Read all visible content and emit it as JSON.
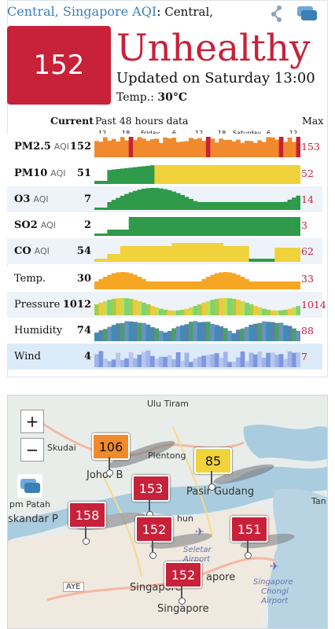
{
  "header": {
    "city": "Central, Singapore AQI",
    "colon": ":",
    "station": " Central,"
  },
  "aqi": {
    "value": "152",
    "status": "Unhealthy",
    "updated": "Updated on Saturday 13:00",
    "temp_label": "Temp.: ",
    "temp_value": "30°C"
  },
  "table": {
    "col_current": "Current",
    "col_history": "Past 48 hours data",
    "col_max": "Max",
    "axis_labels": {
      "h12a": "12",
      "h18a": "18",
      "friday": "Friday",
      "h6a": "6",
      "h12b": "12",
      "h18b": "18",
      "saturday": "Saturday",
      "h6b": "6",
      "h12c": "12"
    },
    "rows": [
      {
        "label": "PM2.5",
        "sub": "AQI",
        "current": "152",
        "max": "153"
      },
      {
        "label": "PM10",
        "sub": "AQI",
        "current": "51",
        "max": "52"
      },
      {
        "label": "O3",
        "sub": "AQI",
        "current": "7",
        "max": "14"
      },
      {
        "label": "SO2",
        "sub": "AQI",
        "current": "2",
        "max": "3"
      },
      {
        "label": "CO",
        "sub": "AQI",
        "current": "54",
        "max": "62"
      },
      {
        "label": "Temp.",
        "sub": "",
        "current": "30",
        "max": "33"
      },
      {
        "label": "Pressure",
        "sub": "",
        "current": "1012",
        "max": "1014"
      },
      {
        "label": "Humidity",
        "sub": "",
        "current": "74",
        "max": "88"
      },
      {
        "label": "Wind",
        "sub": "",
        "current": "4",
        "max": "7"
      }
    ]
  },
  "colors": {
    "accent": "#3b7fb8",
    "unhealthy": "#c8213a",
    "moderate": "#f0d23a",
    "unhealthy_sensitive": "#f08a2c",
    "good": "#2e9a4a"
  },
  "map": {
    "zoom_in": "+",
    "zoom_out": "−",
    "places": {
      "ulu_tiram": "Ulu Tiram",
      "skudai": "Skudai",
      "plentong": "Plentong",
      "johor_b": "Johor B",
      "pasir_gudang": "Pasir Gudang",
      "pm_patah": "pm Patah",
      "iskandar": "skandar P",
      "seletar": "Seletar",
      "airport": "Airport",
      "singapore_chongi": "Singapore",
      "chongi": "Chongi",
      "chongi_airport": "Airport",
      "aye": "AYE",
      "singapore_1": "Singapore",
      "singapore_2": "Singapore",
      "tan": "Tan",
      "chun": "hun",
      "apore": "apore"
    },
    "stations": [
      {
        "id": "johor",
        "value": "106",
        "color": "#f08a2c",
        "text": "#111"
      },
      {
        "id": "pasir",
        "value": "85",
        "color": "#f0d23a",
        "text": "#111"
      },
      {
        "id": "north",
        "value": "153",
        "color": "#c8213a",
        "text": "#fff"
      },
      {
        "id": "west",
        "value": "158",
        "color": "#c8213a",
        "text": "#fff"
      },
      {
        "id": "central",
        "value": "152",
        "color": "#c8213a",
        "text": "#fff"
      },
      {
        "id": "east",
        "value": "151",
        "color": "#c8213a",
        "text": "#fff"
      },
      {
        "id": "south",
        "value": "152",
        "color": "#c8213a",
        "text": "#fff"
      }
    ]
  }
}
